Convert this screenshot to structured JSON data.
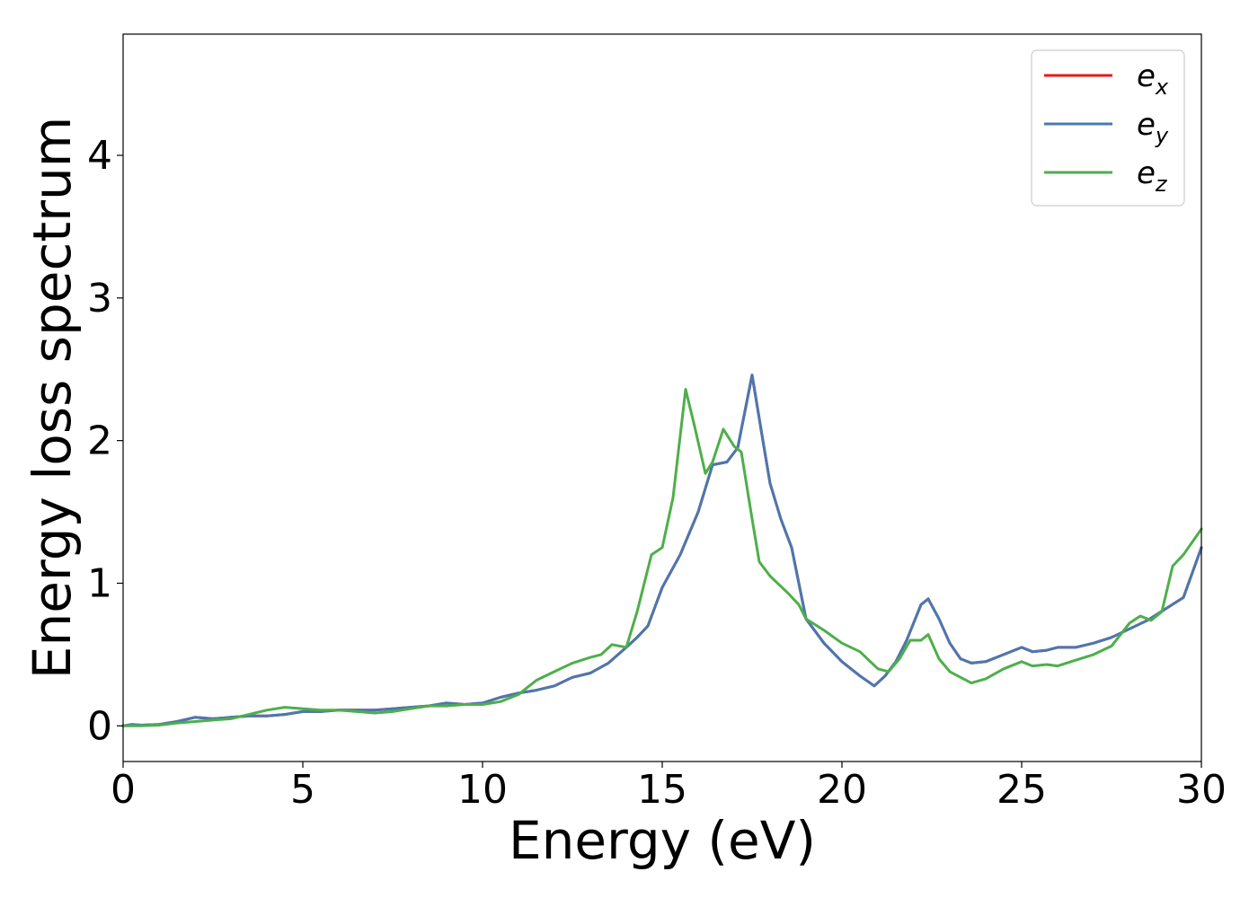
{
  "chart_data": {
    "type": "line",
    "title": "",
    "xlabel": "Energy (eV)",
    "ylabel": "Energy loss spectrum",
    "xlim": [
      0,
      30
    ],
    "ylim": [
      -0.25,
      4.85
    ],
    "xticks": [
      0,
      5,
      10,
      15,
      20,
      25,
      30
    ],
    "yticks": [
      0,
      1,
      2,
      3,
      4
    ],
    "grid": false,
    "legend_position": "top-right",
    "series": [
      {
        "name": "e",
        "subscript": "x",
        "color": "#e41a1c",
        "points": [
          [
            0,
            0
          ],
          [
            0.25,
            0.01
          ],
          [
            0.5,
            0.005
          ],
          [
            1,
            0.01
          ],
          [
            1.5,
            0.03
          ],
          [
            2,
            0.06
          ],
          [
            2.5,
            0.05
          ],
          [
            3,
            0.06
          ],
          [
            3.5,
            0.07
          ],
          [
            4,
            0.07
          ],
          [
            4.5,
            0.08
          ],
          [
            5,
            0.1
          ],
          [
            5.5,
            0.1
          ],
          [
            6,
            0.11
          ],
          [
            6.5,
            0.11
          ],
          [
            7,
            0.11
          ],
          [
            7.5,
            0.12
          ],
          [
            8,
            0.13
          ],
          [
            8.5,
            0.14
          ],
          [
            9,
            0.16
          ],
          [
            9.5,
            0.15
          ],
          [
            10,
            0.16
          ],
          [
            10.5,
            0.2
          ],
          [
            11,
            0.23
          ],
          [
            11.5,
            0.25
          ],
          [
            12,
            0.28
          ],
          [
            12.5,
            0.34
          ],
          [
            13,
            0.37
          ],
          [
            13.5,
            0.44
          ],
          [
            14,
            0.55
          ],
          [
            14.3,
            0.62
          ],
          [
            14.6,
            0.7
          ],
          [
            15,
            0.97
          ],
          [
            15.5,
            1.2
          ],
          [
            16,
            1.5
          ],
          [
            16.4,
            1.83
          ],
          [
            16.8,
            1.85
          ],
          [
            17.1,
            1.95
          ],
          [
            17.5,
            2.46
          ],
          [
            17.8,
            2.0
          ],
          [
            18,
            1.7
          ],
          [
            18.3,
            1.45
          ],
          [
            18.6,
            1.25
          ],
          [
            19,
            0.75
          ],
          [
            19.5,
            0.58
          ],
          [
            20,
            0.45
          ],
          [
            20.5,
            0.35
          ],
          [
            20.9,
            0.28
          ],
          [
            21.2,
            0.35
          ],
          [
            21.5,
            0.45
          ],
          [
            21.8,
            0.6
          ],
          [
            22.2,
            0.85
          ],
          [
            22.4,
            0.89
          ],
          [
            22.7,
            0.75
          ],
          [
            23,
            0.58
          ],
          [
            23.3,
            0.47
          ],
          [
            23.6,
            0.44
          ],
          [
            24,
            0.45
          ],
          [
            24.5,
            0.5
          ],
          [
            25,
            0.55
          ],
          [
            25.3,
            0.52
          ],
          [
            25.7,
            0.53
          ],
          [
            26,
            0.55
          ],
          [
            26.5,
            0.55
          ],
          [
            27,
            0.58
          ],
          [
            27.5,
            0.62
          ],
          [
            28,
            0.68
          ],
          [
            28.5,
            0.74
          ],
          [
            29,
            0.82
          ],
          [
            29.5,
            0.9
          ],
          [
            30,
            1.25
          ]
        ]
      },
      {
        "name": "e",
        "subscript": "y",
        "color": "#4a78b0",
        "points": [
          [
            0,
            0
          ],
          [
            0.25,
            0.01
          ],
          [
            0.5,
            0.005
          ],
          [
            1,
            0.01
          ],
          [
            1.5,
            0.03
          ],
          [
            2,
            0.06
          ],
          [
            2.5,
            0.05
          ],
          [
            3,
            0.06
          ],
          [
            3.5,
            0.07
          ],
          [
            4,
            0.07
          ],
          [
            4.5,
            0.08
          ],
          [
            5,
            0.1
          ],
          [
            5.5,
            0.1
          ],
          [
            6,
            0.11
          ],
          [
            6.5,
            0.11
          ],
          [
            7,
            0.11
          ],
          [
            7.5,
            0.12
          ],
          [
            8,
            0.13
          ],
          [
            8.5,
            0.14
          ],
          [
            9,
            0.16
          ],
          [
            9.5,
            0.15
          ],
          [
            10,
            0.16
          ],
          [
            10.5,
            0.2
          ],
          [
            11,
            0.23
          ],
          [
            11.5,
            0.25
          ],
          [
            12,
            0.28
          ],
          [
            12.5,
            0.34
          ],
          [
            13,
            0.37
          ],
          [
            13.5,
            0.44
          ],
          [
            14,
            0.55
          ],
          [
            14.3,
            0.62
          ],
          [
            14.6,
            0.7
          ],
          [
            15,
            0.97
          ],
          [
            15.5,
            1.2
          ],
          [
            16,
            1.5
          ],
          [
            16.4,
            1.83
          ],
          [
            16.8,
            1.85
          ],
          [
            17.1,
            1.95
          ],
          [
            17.5,
            2.46
          ],
          [
            17.8,
            2.0
          ],
          [
            18,
            1.7
          ],
          [
            18.3,
            1.45
          ],
          [
            18.6,
            1.25
          ],
          [
            19,
            0.75
          ],
          [
            19.5,
            0.58
          ],
          [
            20,
            0.45
          ],
          [
            20.5,
            0.35
          ],
          [
            20.9,
            0.28
          ],
          [
            21.2,
            0.35
          ],
          [
            21.5,
            0.45
          ],
          [
            21.8,
            0.6
          ],
          [
            22.2,
            0.85
          ],
          [
            22.4,
            0.89
          ],
          [
            22.7,
            0.75
          ],
          [
            23,
            0.58
          ],
          [
            23.3,
            0.47
          ],
          [
            23.6,
            0.44
          ],
          [
            24,
            0.45
          ],
          [
            24.5,
            0.5
          ],
          [
            25,
            0.55
          ],
          [
            25.3,
            0.52
          ],
          [
            25.7,
            0.53
          ],
          [
            26,
            0.55
          ],
          [
            26.5,
            0.55
          ],
          [
            27,
            0.58
          ],
          [
            27.5,
            0.62
          ],
          [
            28,
            0.68
          ],
          [
            28.5,
            0.74
          ],
          [
            29,
            0.82
          ],
          [
            29.5,
            0.9
          ],
          [
            30,
            1.25
          ]
        ]
      },
      {
        "name": "e",
        "subscript": "z",
        "color": "#4daf4a",
        "points": [
          [
            0,
            0
          ],
          [
            0.5,
            0
          ],
          [
            1,
            0.005
          ],
          [
            1.5,
            0.02
          ],
          [
            2,
            0.03
          ],
          [
            2.5,
            0.04
          ],
          [
            3,
            0.05
          ],
          [
            3.5,
            0.08
          ],
          [
            4,
            0.11
          ],
          [
            4.5,
            0.13
          ],
          [
            5,
            0.12
          ],
          [
            5.5,
            0.11
          ],
          [
            6,
            0.11
          ],
          [
            6.5,
            0.1
          ],
          [
            7,
            0.09
          ],
          [
            7.5,
            0.1
          ],
          [
            8,
            0.12
          ],
          [
            8.5,
            0.14
          ],
          [
            9,
            0.14
          ],
          [
            9.5,
            0.15
          ],
          [
            10,
            0.15
          ],
          [
            10.5,
            0.17
          ],
          [
            11,
            0.22
          ],
          [
            11.5,
            0.32
          ],
          [
            12,
            0.38
          ],
          [
            12.5,
            0.44
          ],
          [
            13,
            0.48
          ],
          [
            13.3,
            0.5
          ],
          [
            13.6,
            0.57
          ],
          [
            14,
            0.55
          ],
          [
            14.3,
            0.8
          ],
          [
            14.7,
            1.2
          ],
          [
            15,
            1.25
          ],
          [
            15.3,
            1.6
          ],
          [
            15.65,
            2.36
          ],
          [
            15.9,
            2.1
          ],
          [
            16.2,
            1.77
          ],
          [
            16.4,
            1.85
          ],
          [
            16.7,
            2.08
          ],
          [
            17,
            1.96
          ],
          [
            17.2,
            1.92
          ],
          [
            17.5,
            1.45
          ],
          [
            17.7,
            1.15
          ],
          [
            18,
            1.05
          ],
          [
            18.5,
            0.93
          ],
          [
            18.8,
            0.85
          ],
          [
            19,
            0.75
          ],
          [
            19.5,
            0.67
          ],
          [
            20,
            0.58
          ],
          [
            20.5,
            0.52
          ],
          [
            21,
            0.4
          ],
          [
            21.3,
            0.38
          ],
          [
            21.6,
            0.47
          ],
          [
            21.9,
            0.6
          ],
          [
            22.2,
            0.6
          ],
          [
            22.4,
            0.64
          ],
          [
            22.7,
            0.47
          ],
          [
            23,
            0.38
          ],
          [
            23.3,
            0.34
          ],
          [
            23.6,
            0.3
          ],
          [
            24,
            0.33
          ],
          [
            24.5,
            0.4
          ],
          [
            25,
            0.45
          ],
          [
            25.3,
            0.42
          ],
          [
            25.7,
            0.43
          ],
          [
            26,
            0.42
          ],
          [
            26.5,
            0.46
          ],
          [
            27,
            0.5
          ],
          [
            27.5,
            0.56
          ],
          [
            28,
            0.72
          ],
          [
            28.3,
            0.77
          ],
          [
            28.6,
            0.74
          ],
          [
            28.9,
            0.8
          ],
          [
            29.2,
            1.12
          ],
          [
            29.5,
            1.2
          ],
          [
            30,
            1.38
          ]
        ]
      }
    ]
  }
}
